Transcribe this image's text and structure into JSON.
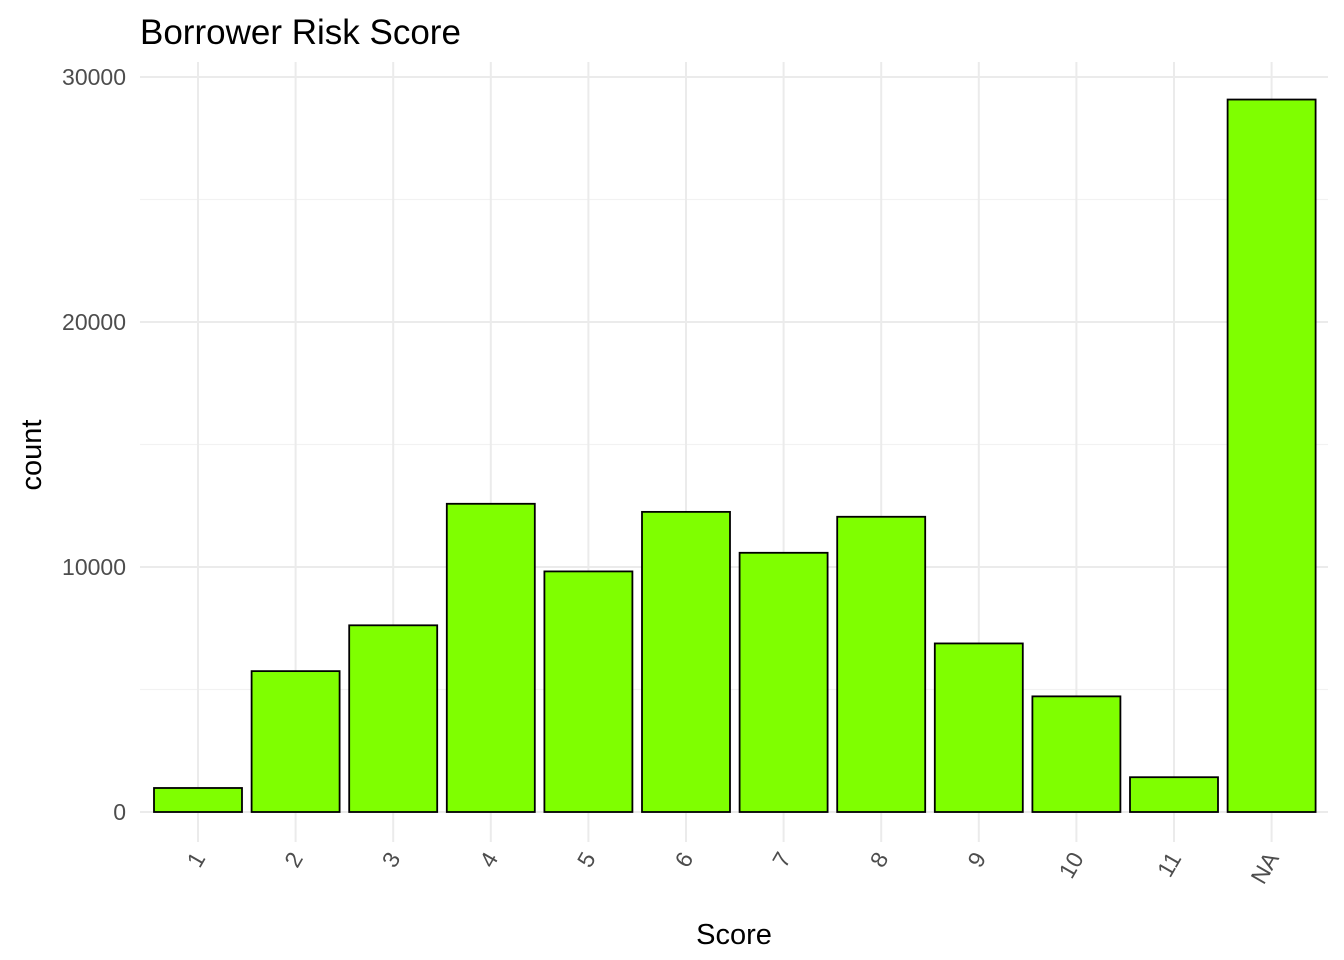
{
  "chart_data": {
    "type": "bar",
    "title": "Borrower Risk Score",
    "xlabel": "Score",
    "ylabel": "count",
    "categories": [
      "1",
      "2",
      "3",
      "4",
      "5",
      "6",
      "7",
      "8",
      "9",
      "10",
      "11",
      "NA"
    ],
    "values": [
      980,
      5750,
      7620,
      12580,
      9820,
      12250,
      10580,
      12050,
      6880,
      4720,
      1420,
      29080
    ],
    "ylim": [
      0,
      30000
    ],
    "yticks": [
      0,
      10000,
      20000,
      30000
    ],
    "ytick_labels": [
      "0",
      "10000",
      "20000",
      "30000"
    ],
    "grid": true,
    "legend": "none",
    "bar_color": "#7fff00",
    "bar_outline": "#000000"
  }
}
